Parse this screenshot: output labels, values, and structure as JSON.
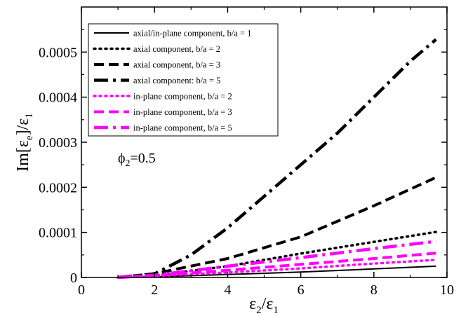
{
  "colors": {
    "black": "#000000",
    "magenta": "#ff00ff",
    "background": "#ffffff"
  },
  "chart_data": {
    "type": "line",
    "xlim": [
      0,
      10
    ],
    "ylim": [
      0,
      0.0006
    ],
    "xticks": [
      "0",
      "2",
      "4",
      "6",
      "8",
      "10"
    ],
    "yticks": [
      "0",
      "0.0001",
      "0.0002",
      "0.0003",
      "0.0004",
      "0.0005"
    ],
    "xlabel": {
      "main": "ε",
      "sub1": "2",
      "slash": "/ε",
      "sub2": "1"
    },
    "ylabel": {
      "pre": "Im[ε",
      "sub1": "e",
      "mid": "]/ε",
      "sub2": "1"
    },
    "annotation": {
      "pre": "ϕ",
      "sub": "2",
      "post": "=0.5"
    },
    "grid": false,
    "legend_placement": "top-left",
    "series": [
      {
        "name": "axial/in-plane component, b/a = 1",
        "color": "#000000",
        "style": "solid",
        "x": [
          1,
          2,
          4,
          6,
          8,
          9.7
        ],
        "y": [
          0,
          1.5e-06,
          6.5e-06,
          1.2e-05,
          1.9e-05,
          2.5e-05
        ]
      },
      {
        "name": "axial component, b/a = 2",
        "color": "#000000",
        "style": "dotted",
        "x": [
          1,
          2,
          4,
          6,
          8,
          9.7
        ],
        "y": [
          0,
          4e-06,
          2.5e-05,
          5.3e-05,
          7.9e-05,
          0.000101
        ]
      },
      {
        "name": "axial component, b/a = 3",
        "color": "#000000",
        "style": "dashed",
        "x": [
          1,
          2,
          4,
          6,
          8,
          9.7
        ],
        "y": [
          0,
          8.5e-06,
          4.2e-05,
          9e-05,
          0.000159,
          0.000222
        ]
      },
      {
        "name": "axial component: b/a = 5",
        "color": "#000000",
        "style": "dashdot",
        "x": [
          1,
          2,
          3,
          4,
          5,
          6,
          7,
          8,
          9,
          9.7
        ],
        "y": [
          0,
          8e-06,
          5e-05,
          0.00011,
          0.00018,
          0.00025,
          0.00032,
          0.0004,
          0.00048,
          0.000528
        ]
      },
      {
        "name": "in-plane component, b/a = 2",
        "color": "#ff00ff",
        "style": "dotted",
        "x": [
          1,
          2,
          4,
          6,
          8,
          9.7
        ],
        "y": [
          0,
          3e-06,
          1.1e-05,
          2e-05,
          3.1e-05,
          3.9e-05
        ]
      },
      {
        "name": "in-plane component, b/a = 3",
        "color": "#ff00ff",
        "style": "dashed",
        "x": [
          1,
          2,
          4,
          6,
          8,
          9.7
        ],
        "y": [
          0,
          4e-06,
          1.6e-05,
          2.9e-05,
          4.2e-05,
          5.4e-05
        ]
      },
      {
        "name": "in-plane component, b/a = 5",
        "color": "#ff00ff",
        "style": "dashdot",
        "x": [
          1,
          2,
          4,
          6,
          8,
          9.7
        ],
        "y": [
          0,
          5e-06,
          2.5e-05,
          4.4e-05,
          6.4e-05,
          8e-05
        ]
      }
    ]
  }
}
